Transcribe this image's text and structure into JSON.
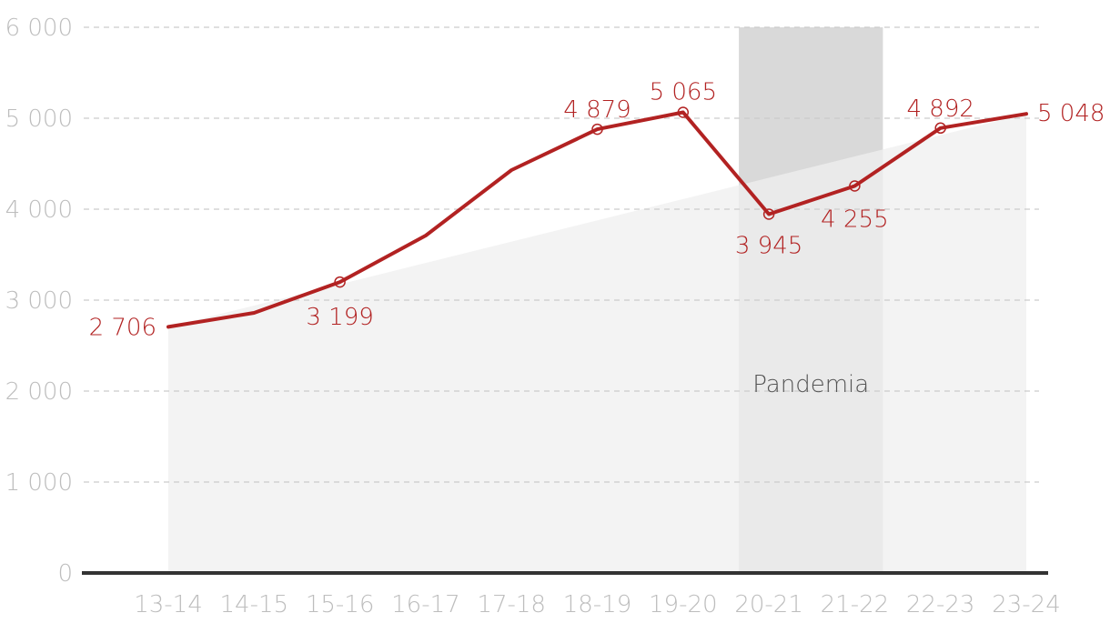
{
  "chart_data": {
    "type": "area",
    "categories": [
      "13-14",
      "14-15",
      "15-16",
      "16-17",
      "17-18",
      "18-19",
      "19-20",
      "20-21",
      "21-22",
      "22-23",
      "23-24"
    ],
    "values": [
      2706,
      2860,
      3199,
      3710,
      4430,
      4879,
      5065,
      3945,
      4255,
      4892,
      5048
    ],
    "data_labels": [
      {
        "index": 0,
        "text": "2 706"
      },
      {
        "index": 2,
        "text": "3 199"
      },
      {
        "index": 5,
        "text": "4 879"
      },
      {
        "index": 6,
        "text": "5 065"
      },
      {
        "index": 7,
        "text": "3 945"
      },
      {
        "index": 8,
        "text": "4 255"
      },
      {
        "index": 9,
        "text": "4 892"
      },
      {
        "index": 10,
        "text": "5 048"
      }
    ],
    "yticks": [
      {
        "value": 0,
        "label": "0"
      },
      {
        "value": 1000,
        "label": "1 000"
      },
      {
        "value": 2000,
        "label": "2 000"
      },
      {
        "value": 3000,
        "label": "3 000"
      },
      {
        "value": 4000,
        "label": "4 000"
      },
      {
        "value": 5000,
        "label": "5 000"
      },
      {
        "value": 6000,
        "label": "6 000"
      }
    ],
    "ylim": [
      0,
      6000
    ],
    "grid": true,
    "highlight_band": {
      "from": "20-21",
      "to": "21-22",
      "label": "Pandemia"
    },
    "colors": {
      "line": "#b22222",
      "area": "#efefef",
      "band": "#d9d9d9",
      "grid": "#cccccc",
      "axis": "#333333",
      "tick_text": "#bdbdbd",
      "band_text": "#555555"
    }
  }
}
